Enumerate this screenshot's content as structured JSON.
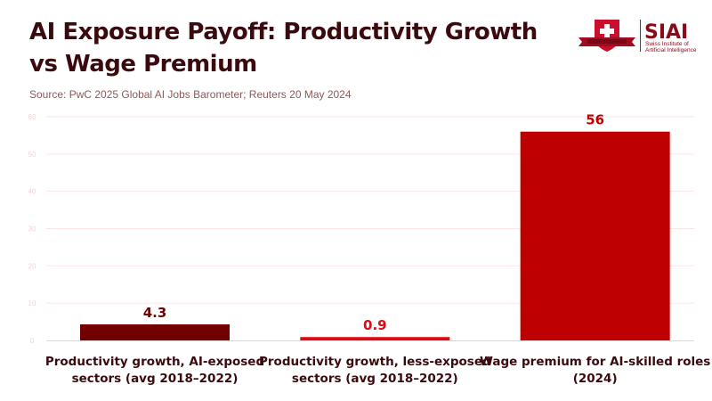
{
  "header": {
    "title_line1": "AI Exposure Payoff: Productivity Growth",
    "title_line2": "vs Wage Premium",
    "source": "Source: PwC 2025 Global AI Jobs Barometer; Reuters 20 May 2024"
  },
  "logo": {
    "name": "SIAI",
    "subtitle_line1": "Swiss Institute of",
    "subtitle_line2": "Artificial Intelligence",
    "icon": "swiss-cross-shield-icon"
  },
  "chart_data": {
    "type": "bar",
    "title": "AI Exposure Payoff: Productivity Growth vs Wage Premium",
    "subtitle": "Source: PwC 2025 Global AI Jobs Barometer; Reuters 20 May 2024",
    "categories": [
      [
        "Productivity growth, AI-exposed",
        "sectors (avg 2018–2022)"
      ],
      [
        "Productivity growth, less-exposed",
        "sectors (avg 2018–2022)"
      ],
      [
        "Wage premium for AI-skilled roles",
        "(2024)"
      ]
    ],
    "values": [
      4.3,
      0.9,
      56
    ],
    "value_labels": [
      "4.3",
      "0.9",
      "56"
    ],
    "bar_colors": [
      "#730000",
      "#e30613",
      "#bf0000"
    ],
    "label_colors": [
      "#730000",
      "#e30613",
      "#bf0000"
    ],
    "xlabel": "",
    "ylabel": "",
    "ylim": [
      0,
      60
    ],
    "yticks": [
      0,
      10,
      20,
      30,
      40,
      50,
      60
    ],
    "grid": true,
    "legend": "none"
  }
}
